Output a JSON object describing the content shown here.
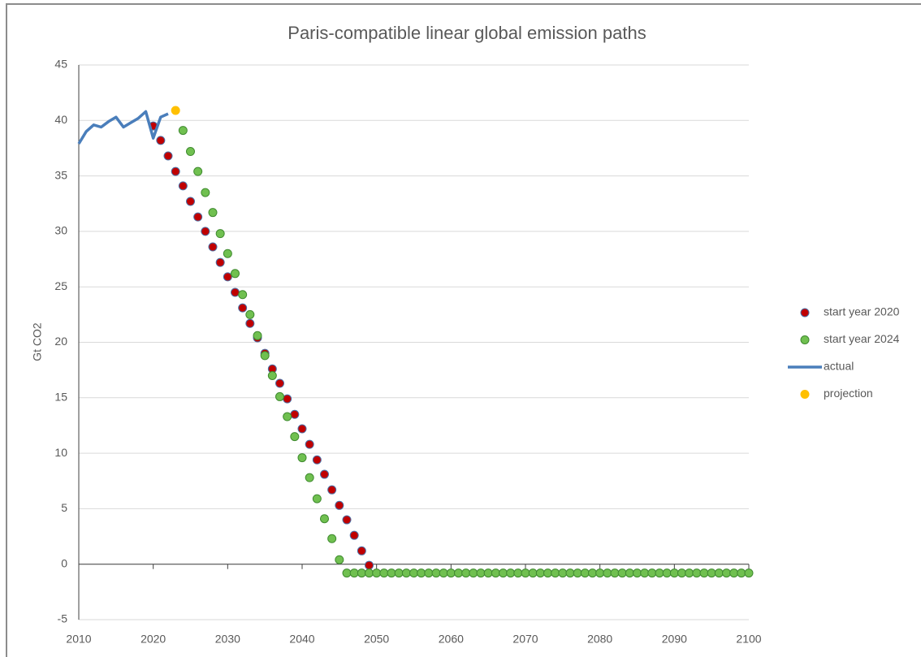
{
  "chart_data": {
    "type": "scatter",
    "title": "Paris-compatible linear global emission paths",
    "ylabel": "Gt CO2",
    "xlim": [
      2010,
      2100
    ],
    "xticks": [
      2010,
      2020,
      2030,
      2040,
      2050,
      2060,
      2070,
      2080,
      2090,
      2100
    ],
    "ylim": [
      -5,
      45
    ],
    "yticks": [
      -5,
      0,
      5,
      10,
      15,
      20,
      25,
      30,
      35,
      40,
      45
    ],
    "grid": true,
    "legend": "right",
    "series": [
      {
        "name": "start year 2020",
        "mode": "markers",
        "color": "#c00000",
        "edge": "#4a6fa5",
        "x": [
          2020,
          2021,
          2022,
          2023,
          2024,
          2025,
          2026,
          2027,
          2028,
          2029,
          2030,
          2031,
          2032,
          2033,
          2034,
          2035,
          2036,
          2037,
          2038,
          2039,
          2040,
          2041,
          2042,
          2043,
          2044,
          2045,
          2046,
          2047,
          2048,
          2049
        ],
        "values": [
          39.5,
          38.2,
          36.8,
          35.4,
          34.1,
          32.7,
          31.3,
          30.0,
          28.6,
          27.2,
          25.9,
          24.5,
          23.1,
          21.7,
          20.4,
          19.0,
          17.6,
          16.3,
          14.9,
          13.5,
          12.2,
          10.8,
          9.4,
          8.1,
          6.7,
          5.3,
          4.0,
          2.6,
          1.2,
          -0.1
        ]
      },
      {
        "name": "start year 2024",
        "mode": "markers",
        "color": "#70c050",
        "edge": "#3f8a2f",
        "x": [
          2024,
          2025,
          2026,
          2027,
          2028,
          2029,
          2030,
          2031,
          2032,
          2033,
          2034,
          2035,
          2036,
          2037,
          2038,
          2039,
          2040,
          2041,
          2042,
          2043,
          2044,
          2045,
          2046,
          2047,
          2048,
          2049,
          2050,
          2051,
          2052,
          2053,
          2054,
          2055,
          2056,
          2057,
          2058,
          2059,
          2060,
          2061,
          2062,
          2063,
          2064,
          2065,
          2066,
          2067,
          2068,
          2069,
          2070,
          2071,
          2072,
          2073,
          2074,
          2075,
          2076,
          2077,
          2078,
          2079,
          2080,
          2081,
          2082,
          2083,
          2084,
          2085,
          2086,
          2087,
          2088,
          2089,
          2090,
          2091,
          2092,
          2093,
          2094,
          2095,
          2096,
          2097,
          2098,
          2099,
          2100
        ],
        "values": [
          39.1,
          37.2,
          35.4,
          33.5,
          31.7,
          29.8,
          28.0,
          26.2,
          24.3,
          22.5,
          20.6,
          18.8,
          17.0,
          15.1,
          13.3,
          11.5,
          9.6,
          7.8,
          5.9,
          4.1,
          2.3,
          0.4,
          -0.8,
          -0.8,
          -0.8,
          -0.8,
          -0.8,
          -0.8,
          -0.8,
          -0.8,
          -0.8,
          -0.8,
          -0.8,
          -0.8,
          -0.8,
          -0.8,
          -0.8,
          -0.8,
          -0.8,
          -0.8,
          -0.8,
          -0.8,
          -0.8,
          -0.8,
          -0.8,
          -0.8,
          -0.8,
          -0.8,
          -0.8,
          -0.8,
          -0.8,
          -0.8,
          -0.8,
          -0.8,
          -0.8,
          -0.8,
          -0.8,
          -0.8,
          -0.8,
          -0.8,
          -0.8,
          -0.8,
          -0.8,
          -0.8,
          -0.8,
          -0.8,
          -0.8,
          -0.8,
          -0.8,
          -0.8,
          -0.8,
          -0.8,
          -0.8,
          -0.8,
          -0.8,
          -0.8,
          -0.8
        ]
      },
      {
        "name": "actual",
        "mode": "line",
        "color": "#4a7ebb",
        "x": [
          2010,
          2011,
          2012,
          2013,
          2014,
          2015,
          2016,
          2017,
          2018,
          2019,
          2020,
          2021,
          2022
        ],
        "values": [
          37.9,
          39.0,
          39.6,
          39.4,
          39.9,
          40.3,
          39.4,
          39.8,
          40.2,
          40.8,
          38.4,
          40.3,
          40.6
        ]
      },
      {
        "name": "projection",
        "mode": "markers",
        "color": "#ffc000",
        "edge": "#ffc000",
        "x": [
          2023
        ],
        "values": [
          40.9
        ]
      }
    ]
  }
}
